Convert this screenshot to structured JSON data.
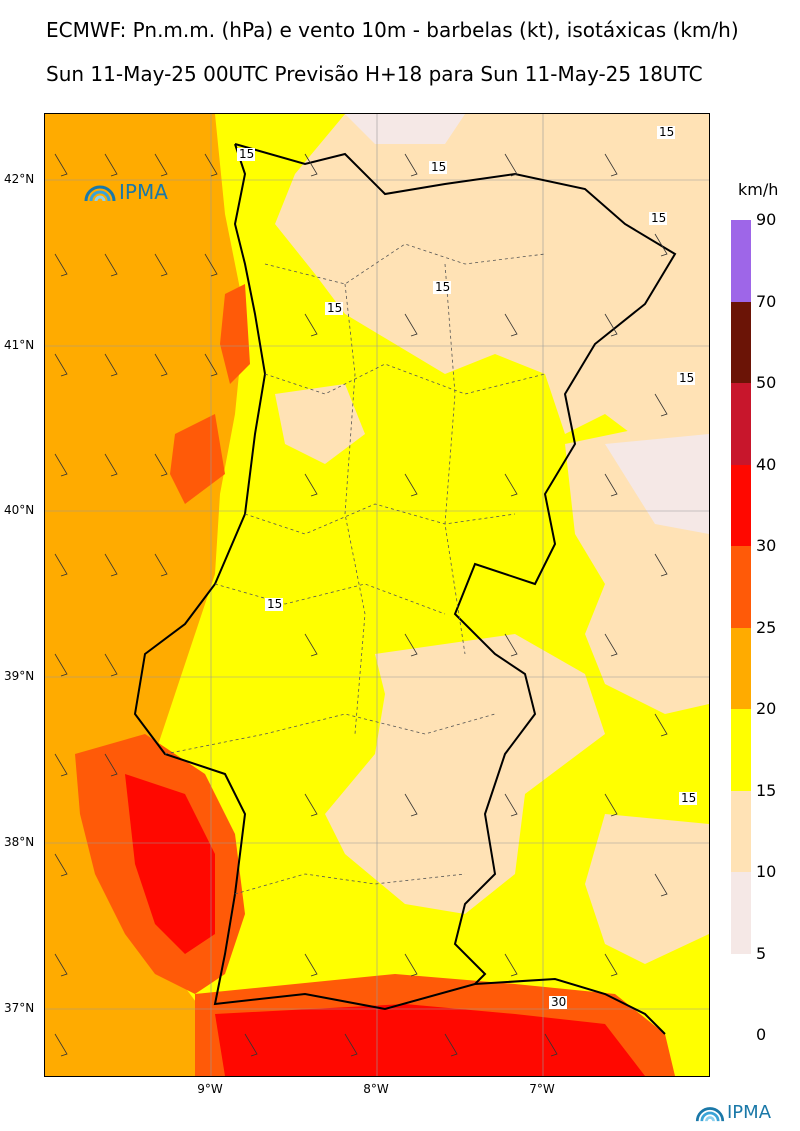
{
  "title_line1": "ECMWF: Pn.m.m. (hPa) e vento 10m - barbelas (kt), isotáxicas (km/h)",
  "title_line2": "Sun 11-May-25 00UTC Previsão H+18 para Sun 11-May-25 18UTC",
  "logo_text": "IPMA",
  "colorbar": {
    "unit": "km/h",
    "levels": [
      "90",
      "70",
      "50",
      "40",
      "30",
      "25",
      "20",
      "15",
      "10",
      "5",
      "0"
    ],
    "colors": [
      "#9e66e8",
      "#6b1406",
      "#c8162c",
      "#ff0800",
      "#ff5a08",
      "#ffab00",
      "#ffff00",
      "#ffe2b5",
      "#f5e8e6",
      "#ffffff"
    ]
  },
  "lat_labels": [
    "42°N",
    "41°N",
    "40°N",
    "39°N",
    "38°N",
    "37°N"
  ],
  "lon_labels": [
    "9°W",
    "8°W",
    "7°W"
  ],
  "contour_labels": [
    "15",
    "15",
    "15",
    "15",
    "15",
    "15",
    "15",
    "15",
    "15",
    "30"
  ]
}
